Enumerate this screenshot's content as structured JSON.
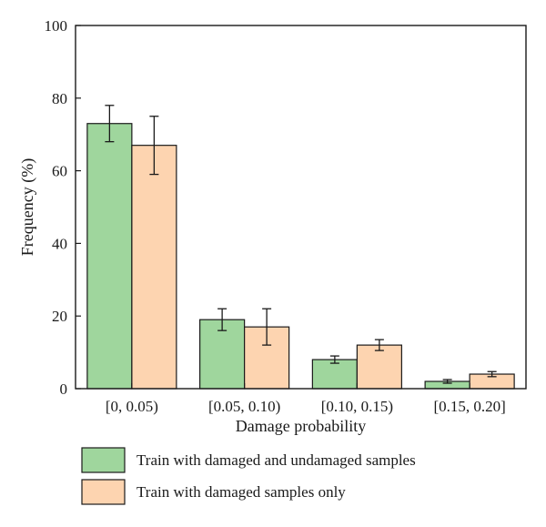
{
  "colors": {
    "series_1": "#9fd69d",
    "series_2": "#fdd4b0",
    "edge": "#1a1a1a"
  },
  "chart_data": {
    "type": "bar",
    "xlabel": "Damage probability",
    "ylabel": "Frequency (%)",
    "ylim": [
      0,
      100
    ],
    "yticks": [
      0,
      20,
      40,
      60,
      80,
      100
    ],
    "grid": false,
    "legend_position": "bottom",
    "categories": [
      "[0, 0.05)",
      "[0.05, 0.10)",
      "[0.10, 0.15)",
      "[0.15, 0.20]"
    ],
    "series": [
      {
        "name": "Train with damaged and undamaged samples",
        "values": [
          73,
          19,
          8,
          2
        ],
        "error_low": [
          68,
          16,
          7,
          1.5
        ],
        "error_high": [
          78,
          22,
          9,
          2.5
        ]
      },
      {
        "name": "Train with damaged samples only",
        "values": [
          67,
          17,
          12,
          4
        ],
        "error_low": [
          59,
          12,
          10.5,
          3.3
        ],
        "error_high": [
          75,
          22,
          13.5,
          4.7
        ]
      }
    ]
  }
}
